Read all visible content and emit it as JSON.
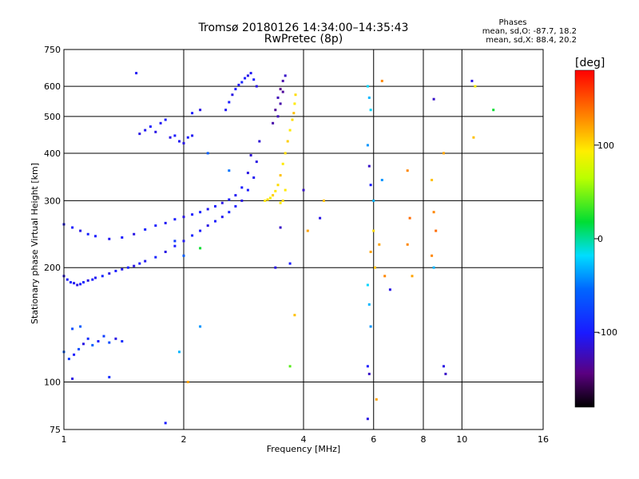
{
  "chart_data": {
    "type": "scatter",
    "title": "Tromsø 20180126 14:34:00–14:35:43",
    "subtitle": "RwPretec (8p)",
    "xlabel": "Frequency [MHz]",
    "ylabel": "Stationary phase Virtual Height [km]",
    "x_scale": "log",
    "y_scale": "log",
    "xlim": [
      1,
      16
    ],
    "ylim": [
      75,
      750
    ],
    "x_ticks": [
      1,
      2,
      4,
      6,
      8,
      10,
      16
    ],
    "x_tick_labels": [
      "1",
      "2",
      "4",
      "6",
      "8",
      "10",
      "16"
    ],
    "y_ticks": [
      75,
      100,
      200,
      300,
      400,
      500,
      600,
      750
    ],
    "y_tick_labels": [
      "75",
      "100",
      "200",
      "300",
      "400",
      "500",
      "600",
      "750"
    ],
    "grid": true,
    "stats": {
      "heading": "Phases",
      "line_o": "mean, sd,O: -87.7, 18.2",
      "line_x": "mean, sd,X:  88.4, 20.2"
    },
    "colorbar": {
      "label": "[deg]",
      "range": [
        -180,
        180
      ],
      "ticks": [
        100,
        0,
        -100
      ],
      "tick_labels": [
        "100",
        "0",
        "-100"
      ],
      "colormap": "rainbow"
    },
    "series": [
      {
        "role": "o_trace_low",
        "points": [
          [
            1.0,
            190,
            -110
          ],
          [
            1.02,
            186,
            -100
          ],
          [
            1.04,
            183,
            -95
          ],
          [
            1.06,
            182,
            -105
          ],
          [
            1.08,
            180,
            -110
          ],
          [
            1.1,
            181,
            -100
          ],
          [
            1.12,
            183,
            -95
          ],
          [
            1.15,
            185,
            -110
          ],
          [
            1.18,
            186,
            -100
          ],
          [
            1.2,
            188,
            -105
          ],
          [
            1.25,
            190,
            -95
          ],
          [
            1.3,
            193,
            -110
          ],
          [
            1.35,
            196,
            -100
          ],
          [
            1.4,
            198,
            -105
          ],
          [
            1.45,
            200,
            -95
          ],
          [
            1.5,
            202,
            -110
          ],
          [
            1.55,
            205,
            -100
          ],
          [
            1.6,
            208,
            -105
          ],
          [
            1.7,
            213,
            -95
          ],
          [
            1.8,
            220,
            -110
          ],
          [
            1.9,
            228,
            -100
          ],
          [
            2.0,
            235,
            -105
          ],
          [
            2.1,
            243,
            -95
          ],
          [
            2.2,
            250,
            -100
          ],
          [
            2.3,
            258,
            -110
          ],
          [
            2.4,
            265,
            -100
          ],
          [
            2.5,
            272,
            -105
          ],
          [
            2.6,
            280,
            -95
          ],
          [
            2.7,
            290,
            -100
          ],
          [
            2.8,
            300,
            -110
          ],
          [
            2.9,
            320,
            -100
          ],
          [
            3.0,
            345,
            -105
          ],
          [
            3.05,
            380,
            -110
          ],
          [
            3.1,
            430,
            -115
          ]
        ]
      },
      {
        "role": "o_trace_high",
        "points": [
          [
            1.0,
            260,
            -105
          ],
          [
            1.05,
            255,
            -100
          ],
          [
            1.1,
            250,
            -110
          ],
          [
            1.15,
            245,
            -95
          ],
          [
            1.2,
            242,
            -100
          ],
          [
            1.3,
            238,
            -105
          ],
          [
            1.4,
            240,
            -100
          ],
          [
            1.5,
            245,
            -110
          ],
          [
            1.6,
            252,
            -95
          ],
          [
            1.7,
            258,
            -100
          ],
          [
            1.8,
            262,
            -105
          ],
          [
            1.9,
            268,
            -100
          ],
          [
            2.0,
            272,
            -110
          ],
          [
            2.1,
            276,
            -100
          ],
          [
            2.2,
            280,
            -95
          ],
          [
            2.3,
            285,
            -105
          ],
          [
            2.4,
            290,
            -100
          ],
          [
            2.5,
            296,
            -110
          ],
          [
            2.6,
            302,
            -100
          ],
          [
            2.7,
            310,
            -105
          ],
          [
            2.8,
            325,
            -100
          ],
          [
            2.9,
            355,
            -110
          ],
          [
            2.95,
            395,
            -115
          ]
        ]
      },
      {
        "role": "o_trace_top",
        "points": [
          [
            2.55,
            520,
            -105
          ],
          [
            2.6,
            545,
            -100
          ],
          [
            2.65,
            570,
            -110
          ],
          [
            2.7,
            590,
            -100
          ],
          [
            2.75,
            605,
            -105
          ],
          [
            2.8,
            615,
            -95
          ],
          [
            2.85,
            630,
            -100
          ],
          [
            2.9,
            640,
            -110
          ],
          [
            2.95,
            650,
            -105
          ],
          [
            3.0,
            625,
            -100
          ],
          [
            3.05,
            600,
            -110
          ]
        ]
      },
      {
        "role": "x_trace",
        "points": [
          [
            3.2,
            300,
            95
          ],
          [
            3.25,
            302,
            100
          ],
          [
            3.3,
            305,
            90
          ],
          [
            3.35,
            310,
            105
          ],
          [
            3.4,
            318,
            95
          ],
          [
            3.45,
            330,
            100
          ],
          [
            3.5,
            350,
            110
          ],
          [
            3.55,
            375,
            95
          ],
          [
            3.6,
            400,
            100
          ],
          [
            3.65,
            430,
            105
          ],
          [
            3.7,
            460,
            95
          ],
          [
            3.75,
            490,
            100
          ],
          [
            3.78,
            510,
            110
          ],
          [
            3.8,
            540,
            95
          ],
          [
            3.82,
            570,
            100
          ],
          [
            3.6,
            320,
            95
          ],
          [
            3.55,
            300,
            100
          ],
          [
            3.5,
            296,
            95
          ]
        ]
      },
      {
        "role": "x_trace_upper_dark",
        "points": [
          [
            3.35,
            480,
            -130
          ],
          [
            3.4,
            520,
            -135
          ],
          [
            3.45,
            560,
            -125
          ],
          [
            3.5,
            590,
            -140
          ],
          [
            3.55,
            620,
            -130
          ],
          [
            3.6,
            640,
            -120
          ],
          [
            3.5,
            540,
            -130
          ],
          [
            3.45,
            500,
            -125
          ],
          [
            3.55,
            580,
            -135
          ]
        ]
      },
      {
        "role": "low_echoes",
        "points": [
          [
            1.0,
            120,
            -60
          ],
          [
            1.03,
            115,
            -80
          ],
          [
            1.06,
            118,
            -100
          ],
          [
            1.09,
            122,
            -70
          ],
          [
            1.12,
            126,
            -110
          ],
          [
            1.15,
            130,
            -90
          ],
          [
            1.18,
            125,
            -60
          ],
          [
            1.22,
            128,
            -100
          ],
          [
            1.26,
            132,
            -80
          ],
          [
            1.3,
            127,
            -70
          ],
          [
            1.35,
            130,
            -110
          ],
          [
            1.4,
            128,
            -90
          ],
          [
            1.1,
            140,
            -60
          ],
          [
            1.05,
            138,
            -70
          ]
        ]
      },
      {
        "role": "e_region_echoes",
        "points": [
          [
            1.55,
            450,
            -110
          ],
          [
            1.6,
            460,
            -105
          ],
          [
            1.65,
            470,
            -100
          ],
          [
            1.7,
            455,
            -110
          ],
          [
            1.75,
            480,
            -105
          ],
          [
            1.8,
            490,
            -100
          ],
          [
            1.85,
            440,
            -110
          ],
          [
            1.9,
            445,
            -100
          ],
          [
            1.95,
            430,
            -105
          ],
          [
            2.0,
            425,
            -110
          ],
          [
            2.05,
            440,
            -100
          ],
          [
            2.1,
            445,
            -105
          ],
          [
            1.52,
            650,
            -105
          ],
          [
            2.1,
            510,
            -100
          ],
          [
            2.2,
            520,
            -110
          ]
        ]
      },
      {
        "role": "scattered",
        "points": [
          [
            2.3,
            400,
            -60
          ],
          [
            2.6,
            360,
            -50
          ],
          [
            3.7,
            110,
            40
          ],
          [
            4.0,
            320,
            -120
          ],
          [
            4.4,
            270,
            -110
          ],
          [
            4.1,
            250,
            120
          ],
          [
            5.8,
            600,
            -20
          ],
          [
            5.85,
            560,
            -30
          ],
          [
            5.9,
            520,
            -20
          ],
          [
            5.8,
            420,
            -40
          ],
          [
            5.85,
            370,
            -120
          ],
          [
            5.9,
            330,
            -100
          ],
          [
            6.0,
            300,
            -30
          ],
          [
            6.0,
            250,
            100
          ],
          [
            5.9,
            220,
            120
          ],
          [
            6.05,
            200,
            110
          ],
          [
            5.8,
            180,
            -20
          ],
          [
            5.85,
            160,
            -30
          ],
          [
            5.9,
            140,
            -40
          ],
          [
            5.8,
            110,
            -100
          ],
          [
            5.85,
            105,
            -120
          ],
          [
            6.1,
            90,
            120
          ],
          [
            5.8,
            80,
            -110
          ],
          [
            6.3,
            620,
            130
          ],
          [
            6.2,
            230,
            120
          ],
          [
            6.4,
            190,
            130
          ],
          [
            6.6,
            175,
            -110
          ],
          [
            6.3,
            340,
            -40
          ],
          [
            7.3,
            360,
            130
          ],
          [
            7.4,
            270,
            140
          ],
          [
            7.3,
            230,
            130
          ],
          [
            7.5,
            190,
            120
          ],
          [
            8.4,
            340,
            110
          ],
          [
            8.5,
            280,
            130
          ],
          [
            8.6,
            250,
            140
          ],
          [
            8.4,
            215,
            130
          ],
          [
            8.5,
            200,
            -30
          ],
          [
            8.5,
            555,
            -120
          ],
          [
            9.0,
            400,
            120
          ],
          [
            9.0,
            110,
            -110
          ],
          [
            9.1,
            105,
            -120
          ],
          [
            10.6,
            620,
            -110
          ],
          [
            10.8,
            600,
            90
          ],
          [
            10.7,
            440,
            110
          ],
          [
            12.0,
            520,
            20
          ],
          [
            1.8,
            78,
            -100
          ],
          [
            2.05,
            100,
            120
          ],
          [
            1.95,
            120,
            -30
          ],
          [
            2.2,
            140,
            -40
          ],
          [
            2.0,
            215,
            -60
          ],
          [
            2.2,
            225,
            20
          ],
          [
            1.3,
            103,
            -90
          ],
          [
            1.05,
            102,
            -110
          ],
          [
            1.9,
            235,
            -80
          ],
          [
            3.8,
            150,
            110
          ],
          [
            3.7,
            205,
            -100
          ],
          [
            4.5,
            300,
            110
          ],
          [
            3.5,
            255,
            -120
          ],
          [
            3.4,
            200,
            -110
          ]
        ]
      }
    ]
  }
}
